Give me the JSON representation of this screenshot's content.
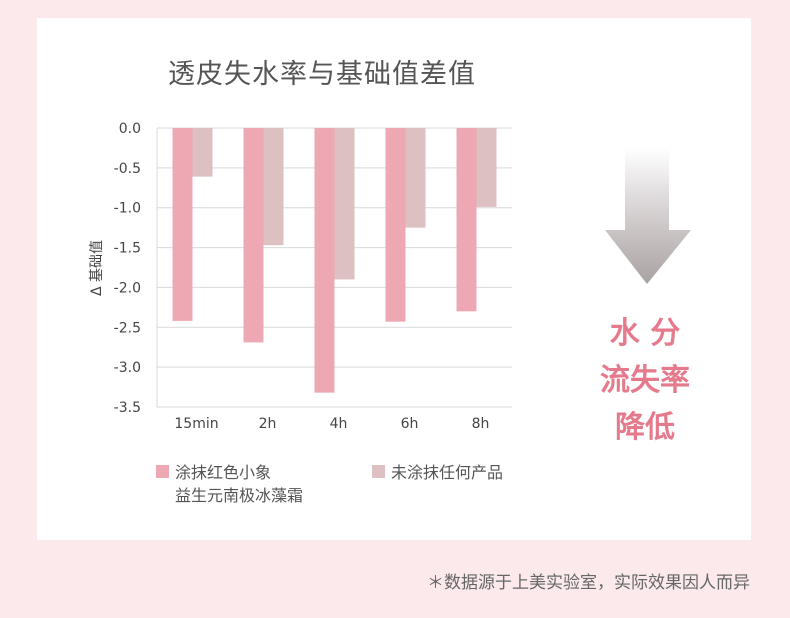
{
  "chart_data": {
    "type": "bar",
    "title": "透皮失水率与基础值差值",
    "ylabel": "Δ 基础值",
    "xlabel": "",
    "ylim": [
      -3.5,
      0
    ],
    "yticks": [
      "0.0",
      "-0.5",
      "-1.0",
      "-1.5",
      "-2.0",
      "-2.5",
      "-3.0",
      "-3.5"
    ],
    "grid": true,
    "legend_position": "bottom",
    "categories": [
      "15min",
      "2h",
      "4h",
      "6h",
      "8h"
    ],
    "series": [
      {
        "name": "涂抹红色小象益生元南极冰藻霜",
        "color": "#eea8b3",
        "values": [
          -2.42,
          -2.69,
          -3.32,
          -2.43,
          -2.3
        ]
      },
      {
        "name": "未涂抹任何产品",
        "color": "#dcc0c2",
        "values": [
          -0.61,
          -1.47,
          -1.9,
          -1.25,
          -0.99
        ]
      }
    ]
  },
  "legend": {
    "item1_line1": "涂抹红色小象",
    "item1_line2": "益生元南极冰藻霜",
    "item2": "未涂抹任何产品"
  },
  "slogan": {
    "line1": "水 分",
    "line2": "流失率",
    "line3": "降低"
  },
  "footnote": "＊数据源于上美实验室，实际效果因人而异",
  "colors": {
    "background": "#fbe9ec",
    "accent": "#e57a8c",
    "arrow": "#b0aaab"
  },
  "icons": {
    "arrow": "down-arrow-icon"
  }
}
